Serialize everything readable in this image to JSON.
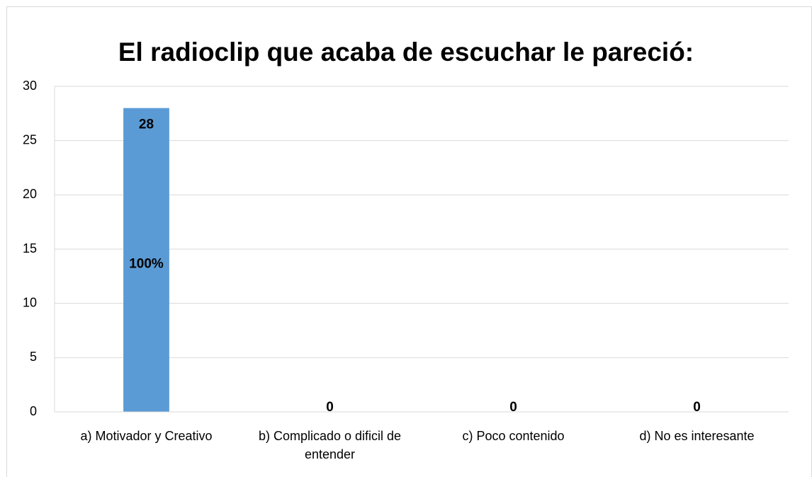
{
  "chart_data": {
    "type": "bar",
    "title": "El radioclip que acaba de escuchar le pareció:",
    "categories": [
      "a) Motivador y Creativo",
      "b) Complicado o dificil de entender",
      "c) Poco contenido",
      "d) No es interesante"
    ],
    "values": [
      28,
      0,
      0,
      0
    ],
    "color": "#5b9bd5",
    "annotation": "100%",
    "ylim": [
      0,
      30
    ],
    "yticks": [
      0,
      5,
      10,
      15,
      20,
      25,
      30
    ],
    "grid": true
  }
}
